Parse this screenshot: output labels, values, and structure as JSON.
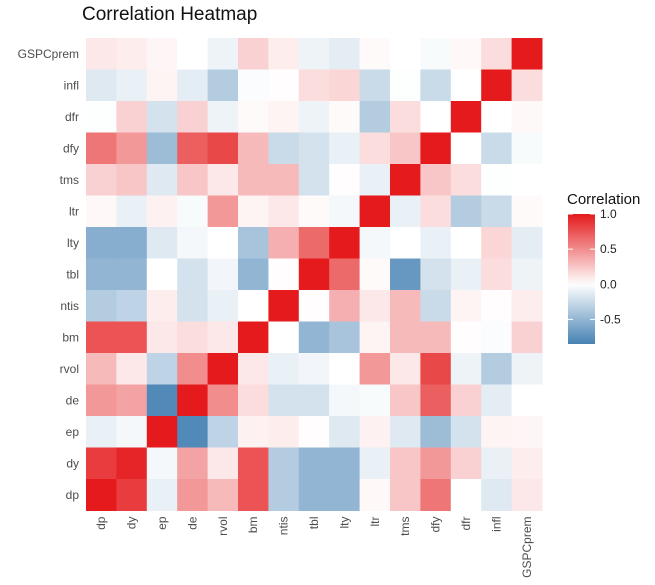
{
  "chart_data": {
    "type": "heatmap",
    "title": "Correlation Heatmap",
    "xlabel": "",
    "ylabel": "",
    "x_categories": [
      "dp",
      "dy",
      "ep",
      "de",
      "rvol",
      "bm",
      "ntis",
      "tbl",
      "lty",
      "ltr",
      "tms",
      "dfy",
      "dfr",
      "infl",
      "GSPCprem"
    ],
    "y_categories_top_to_bottom": [
      "GSPCprem",
      "infl",
      "dfr",
      "dfy",
      "tms",
      "ltr",
      "lty",
      "tbl",
      "ntis",
      "bm",
      "rvol",
      "de",
      "ep",
      "dy",
      "dp"
    ],
    "values": [
      [
        0.1,
        0.08,
        0.04,
        0.0,
        -0.08,
        0.2,
        0.08,
        -0.08,
        -0.12,
        0.02,
        0.0,
        -0.03,
        0.03,
        0.15,
        1.0
      ],
      [
        -0.15,
        -0.1,
        0.05,
        -0.12,
        -0.35,
        -0.02,
        0.01,
        0.15,
        0.18,
        -0.25,
        -0.01,
        -0.25,
        0.0,
        1.0,
        0.15
      ],
      [
        -0.01,
        0.2,
        -0.2,
        0.2,
        -0.08,
        0.02,
        0.05,
        -0.08,
        0.02,
        -0.35,
        0.15,
        0.0,
        1.0,
        0.0,
        0.03
      ],
      [
        0.6,
        0.45,
        -0.45,
        0.7,
        0.8,
        0.3,
        -0.25,
        -0.2,
        -0.1,
        0.15,
        0.25,
        1.0,
        0.0,
        -0.25,
        -0.03
      ],
      [
        0.2,
        0.25,
        -0.15,
        0.25,
        0.1,
        0.3,
        0.3,
        -0.2,
        0.01,
        -0.1,
        1.0,
        0.25,
        0.15,
        -0.01,
        0.0
      ],
      [
        0.03,
        -0.1,
        0.06,
        -0.03,
        0.45,
        0.05,
        0.1,
        0.02,
        -0.05,
        1.0,
        -0.1,
        0.15,
        -0.35,
        -0.25,
        0.02
      ],
      [
        -0.55,
        -0.55,
        -0.15,
        -0.05,
        0.0,
        -0.4,
        0.35,
        0.65,
        1.0,
        -0.05,
        0.0,
        -0.1,
        0.0,
        0.18,
        -0.12
      ],
      [
        -0.5,
        -0.5,
        0.0,
        -0.2,
        -0.06,
        -0.5,
        0.01,
        1.0,
        0.65,
        0.02,
        -0.7,
        -0.2,
        -0.1,
        0.15,
        -0.08
      ],
      [
        -0.35,
        -0.3,
        0.08,
        -0.2,
        -0.1,
        0.0,
        1.0,
        0.01,
        0.35,
        0.1,
        0.3,
        -0.25,
        0.05,
        0.01,
        0.08
      ],
      [
        0.75,
        0.75,
        0.1,
        0.15,
        0.1,
        1.0,
        0.0,
        -0.5,
        -0.4,
        0.05,
        0.3,
        0.3,
        0.01,
        -0.02,
        0.2
      ],
      [
        0.3,
        0.1,
        -0.3,
        0.5,
        1.0,
        0.1,
        -0.1,
        -0.06,
        0.0,
        0.45,
        0.1,
        0.8,
        -0.08,
        -0.35,
        -0.08
      ],
      [
        0.45,
        0.4,
        -0.8,
        1.0,
        0.5,
        0.15,
        -0.2,
        -0.2,
        -0.05,
        -0.03,
        0.25,
        0.7,
        0.2,
        -0.12,
        0.0
      ],
      [
        -0.1,
        -0.05,
        1.0,
        -0.8,
        -0.3,
        0.06,
        0.08,
        0.01,
        -0.15,
        0.06,
        -0.15,
        -0.45,
        -0.2,
        0.05,
        0.04
      ],
      [
        0.85,
        0.95,
        -0.05,
        0.4,
        0.1,
        0.75,
        -0.35,
        -0.5,
        -0.5,
        -0.1,
        0.25,
        0.45,
        0.2,
        -0.1,
        0.08
      ],
      [
        1.0,
        0.85,
        -0.1,
        0.45,
        0.3,
        0.75,
        -0.35,
        -0.5,
        -0.5,
        0.03,
        0.25,
        0.6,
        0.0,
        -0.15,
        0.1
      ]
    ],
    "scale": {
      "low": "#4682B4",
      "mid": "#FFFFFF",
      "high": "#E41A1C",
      "limits": [
        -0.85,
        1.0
      ]
    },
    "legend": {
      "title": "Correlation",
      "ticks": [
        1.0,
        0.5,
        0.0,
        -0.5
      ],
      "tick_labels": [
        "1.0",
        "0.5",
        "0.0",
        "-0.5"
      ],
      "position": "right"
    },
    "grid": false
  }
}
